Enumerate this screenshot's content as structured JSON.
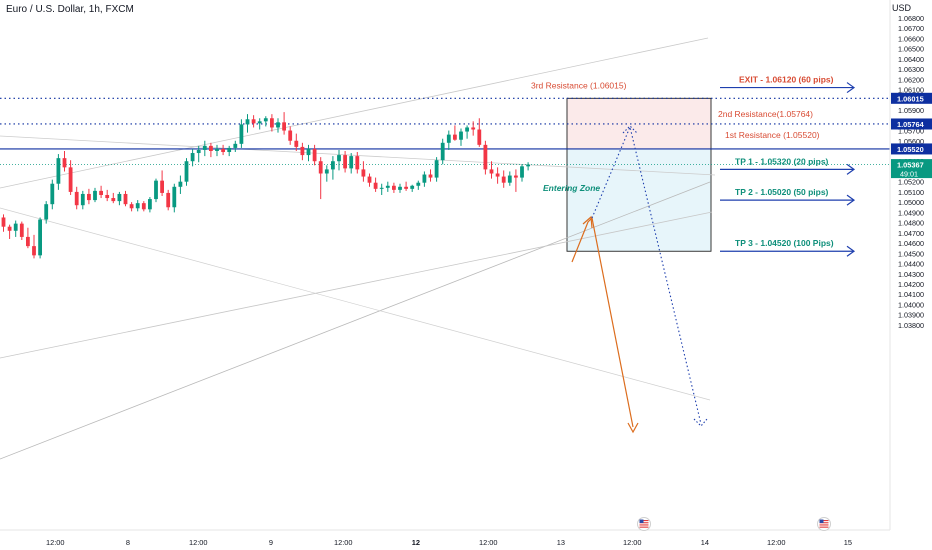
{
  "header": {
    "symbol": "Euro / U.S. Dollar, 1h, FXCM",
    "currency": "USD"
  },
  "colors": {
    "bull": "#089981",
    "bear": "#f23645",
    "res_line": "#0d2fa0",
    "exit_text": "#d84b33",
    "tp_text": "#0e8f7a",
    "arrow_blue": "#1e3fae",
    "orange": "#dc6d1e",
    "zone_red": "#f7d8d8",
    "zone_blue": "#dff2f8"
  },
  "chart_data": {
    "type": "candlestick",
    "price_axis": {
      "min": 1.038,
      "max": 1.068,
      "ticks": [
        "1.06800",
        "1.06700",
        "1.06600",
        "1.06500",
        "1.06400",
        "1.06300",
        "1.06200",
        "1.06100",
        "1.06000",
        "1.05900",
        "1.05800",
        "1.05700",
        "1.05600",
        "1.05500",
        "1.05400",
        "1.05300",
        "1.05200",
        "1.05100",
        "1.05000",
        "1.04900",
        "1.04800",
        "1.04700",
        "1.04600",
        "1.04500",
        "1.04400",
        "1.04300",
        "1.04200",
        "1.04100",
        "1.04000",
        "1.03900",
        "1.03800"
      ]
    },
    "time_axis": [
      "12:00",
      "8",
      "12:00",
      "9",
      "12:00",
      "12",
      "12:00",
      "13",
      "12:00",
      "14",
      "12:00",
      "15"
    ],
    "price_labels": [
      {
        "text": "1.06015",
        "price": 1.06015,
        "style": "blue"
      },
      {
        "text": "1.05764",
        "price": 1.05764,
        "style": "blue"
      },
      {
        "text": "1.05520",
        "price": 1.0552,
        "style": "blue"
      },
      {
        "text": "1.05367",
        "sub": "49:01",
        "price": 1.05367,
        "style": "green"
      }
    ],
    "levels": [
      {
        "name": "3rd Resistance (1.06015)",
        "price": 1.06015,
        "kind": "dotted"
      },
      {
        "name": "2nd Resistance(1.05764)",
        "price": 1.05764,
        "kind": "dotted"
      },
      {
        "name": "1st Resistance (1.05520)",
        "price": 1.0552,
        "kind": "solid"
      }
    ],
    "targets": [
      {
        "label": "EXIT - 1.06120 (60 pips)",
        "price": 1.0612,
        "color": "exit"
      },
      {
        "label": "TP 1 - 1.05320 (20 pips)",
        "price": 1.0532,
        "color": "tp"
      },
      {
        "label": "TP 2 - 1.05020 (50 pips)",
        "price": 1.0502,
        "color": "tp"
      },
      {
        "label": "TP 3 - 1.04520 (100 Pips)",
        "price": 1.0452,
        "color": "tp"
      }
    ],
    "annotation": "Entering Zone",
    "candles": [
      {
        "o": 1.0485,
        "h": 1.0488,
        "l": 1.0471,
        "c": 1.0476
      },
      {
        "o": 1.0476,
        "h": 1.0478,
        "l": 1.0464,
        "c": 1.0472
      },
      {
        "o": 1.0472,
        "h": 1.0482,
        "l": 1.0466,
        "c": 1.0479
      },
      {
        "o": 1.0479,
        "h": 1.0481,
        "l": 1.0463,
        "c": 1.0466
      },
      {
        "o": 1.0466,
        "h": 1.0475,
        "l": 1.0455,
        "c": 1.0457
      },
      {
        "o": 1.0457,
        "h": 1.0468,
        "l": 1.0445,
        "c": 1.0448
      },
      {
        "o": 1.0448,
        "h": 1.0485,
        "l": 1.0445,
        "c": 1.0483
      },
      {
        "o": 1.0483,
        "h": 1.0501,
        "l": 1.0479,
        "c": 1.0498
      },
      {
        "o": 1.0498,
        "h": 1.0522,
        "l": 1.0493,
        "c": 1.0518
      },
      {
        "o": 1.0518,
        "h": 1.0547,
        "l": 1.0512,
        "c": 1.0543
      },
      {
        "o": 1.0543,
        "h": 1.055,
        "l": 1.053,
        "c": 1.0534
      },
      {
        "o": 1.0534,
        "h": 1.0541,
        "l": 1.0507,
        "c": 1.051
      },
      {
        "o": 1.051,
        "h": 1.0515,
        "l": 1.0493,
        "c": 1.0497
      },
      {
        "o": 1.0497,
        "h": 1.0511,
        "l": 1.0493,
        "c": 1.0508
      },
      {
        "o": 1.0508,
        "h": 1.0513,
        "l": 1.0498,
        "c": 1.0502
      },
      {
        "o": 1.0502,
        "h": 1.0514,
        "l": 1.05,
        "c": 1.0511
      },
      {
        "o": 1.0511,
        "h": 1.0516,
        "l": 1.0504,
        "c": 1.0507
      },
      {
        "o": 1.0507,
        "h": 1.0512,
        "l": 1.0501,
        "c": 1.0504
      },
      {
        "o": 1.0504,
        "h": 1.0509,
        "l": 1.0499,
        "c": 1.0501
      },
      {
        "o": 1.0501,
        "h": 1.051,
        "l": 1.0497,
        "c": 1.0508
      },
      {
        "o": 1.0508,
        "h": 1.0511,
        "l": 1.0496,
        "c": 1.0498
      },
      {
        "o": 1.0498,
        "h": 1.05,
        "l": 1.0491,
        "c": 1.0494
      },
      {
        "o": 1.0494,
        "h": 1.0502,
        "l": 1.0491,
        "c": 1.0499
      },
      {
        "o": 1.0499,
        "h": 1.0501,
        "l": 1.0491,
        "c": 1.0493
      },
      {
        "o": 1.0493,
        "h": 1.0505,
        "l": 1.049,
        "c": 1.0503
      },
      {
        "o": 1.0503,
        "h": 1.0523,
        "l": 1.05,
        "c": 1.0521
      },
      {
        "o": 1.0521,
        "h": 1.0531,
        "l": 1.0506,
        "c": 1.0509
      },
      {
        "o": 1.0509,
        "h": 1.0512,
        "l": 1.0492,
        "c": 1.0495
      },
      {
        "o": 1.0495,
        "h": 1.0518,
        "l": 1.049,
        "c": 1.0515
      },
      {
        "o": 1.0515,
        "h": 1.0526,
        "l": 1.0508,
        "c": 1.052
      },
      {
        "o": 1.052,
        "h": 1.0543,
        "l": 1.0516,
        "c": 1.054
      },
      {
        "o": 1.054,
        "h": 1.0552,
        "l": 1.0535,
        "c": 1.0548
      },
      {
        "o": 1.0548,
        "h": 1.0555,
        "l": 1.0539,
        "c": 1.0551
      },
      {
        "o": 1.0551,
        "h": 1.056,
        "l": 1.0545,
        "c": 1.0555
      },
      {
        "o": 1.0555,
        "h": 1.0558,
        "l": 1.0544,
        "c": 1.055
      },
      {
        "o": 1.055,
        "h": 1.0556,
        "l": 1.0545,
        "c": 1.0552
      },
      {
        "o": 1.0552,
        "h": 1.0556,
        "l": 1.0546,
        "c": 1.0549
      },
      {
        "o": 1.0549,
        "h": 1.0555,
        "l": 1.0545,
        "c": 1.0553
      },
      {
        "o": 1.0553,
        "h": 1.056,
        "l": 1.0549,
        "c": 1.0557
      },
      {
        "o": 1.0557,
        "h": 1.0581,
        "l": 1.0553,
        "c": 1.0576
      },
      {
        "o": 1.0576,
        "h": 1.0586,
        "l": 1.0568,
        "c": 1.0581
      },
      {
        "o": 1.0581,
        "h": 1.0585,
        "l": 1.0573,
        "c": 1.0577
      },
      {
        "o": 1.0577,
        "h": 1.0582,
        "l": 1.0571,
        "c": 1.0579
      },
      {
        "o": 1.0579,
        "h": 1.0584,
        "l": 1.0574,
        "c": 1.0582
      },
      {
        "o": 1.0582,
        "h": 1.0586,
        "l": 1.0569,
        "c": 1.0573
      },
      {
        "o": 1.0573,
        "h": 1.0582,
        "l": 1.0568,
        "c": 1.0578
      },
      {
        "o": 1.0578,
        "h": 1.0588,
        "l": 1.0566,
        "c": 1.057
      },
      {
        "o": 1.057,
        "h": 1.0574,
        "l": 1.0556,
        "c": 1.056
      },
      {
        "o": 1.056,
        "h": 1.0567,
        "l": 1.055,
        "c": 1.0554
      },
      {
        "o": 1.0554,
        "h": 1.0558,
        "l": 1.0541,
        "c": 1.0546
      },
      {
        "o": 1.0546,
        "h": 1.0556,
        "l": 1.054,
        "c": 1.0552
      },
      {
        "o": 1.0552,
        "h": 1.0556,
        "l": 1.0536,
        "c": 1.054
      },
      {
        "o": 1.054,
        "h": 1.0544,
        "l": 1.0503,
        "c": 1.0528
      },
      {
        "o": 1.0528,
        "h": 1.0536,
        "l": 1.052,
        "c": 1.0532
      },
      {
        "o": 1.0532,
        "h": 1.0545,
        "l": 1.0522,
        "c": 1.054
      },
      {
        "o": 1.054,
        "h": 1.0551,
        "l": 1.0531,
        "c": 1.0546
      },
      {
        "o": 1.0546,
        "h": 1.055,
        "l": 1.0529,
        "c": 1.0533
      },
      {
        "o": 1.0533,
        "h": 1.0548,
        "l": 1.0528,
        "c": 1.0545
      },
      {
        "o": 1.0545,
        "h": 1.0549,
        "l": 1.0528,
        "c": 1.0532
      },
      {
        "o": 1.0532,
        "h": 1.054,
        "l": 1.052,
        "c": 1.0525
      },
      {
        "o": 1.0525,
        "h": 1.0528,
        "l": 1.0515,
        "c": 1.0519
      },
      {
        "o": 1.0519,
        "h": 1.0524,
        "l": 1.051,
        "c": 1.0513
      },
      {
        "o": 1.0513,
        "h": 1.0518,
        "l": 1.0507,
        "c": 1.0514
      },
      {
        "o": 1.0514,
        "h": 1.052,
        "l": 1.051,
        "c": 1.0516
      },
      {
        "o": 1.0516,
        "h": 1.0519,
        "l": 1.0509,
        "c": 1.0512
      },
      {
        "o": 1.0512,
        "h": 1.0518,
        "l": 1.0509,
        "c": 1.0515
      },
      {
        "o": 1.0515,
        "h": 1.052,
        "l": 1.0511,
        "c": 1.0513
      },
      {
        "o": 1.0513,
        "h": 1.0517,
        "l": 1.051,
        "c": 1.0516
      },
      {
        "o": 1.0516,
        "h": 1.0521,
        "l": 1.0512,
        "c": 1.0519
      },
      {
        "o": 1.0519,
        "h": 1.053,
        "l": 1.0515,
        "c": 1.0527
      },
      {
        "o": 1.0527,
        "h": 1.0532,
        "l": 1.052,
        "c": 1.0524
      },
      {
        "o": 1.0524,
        "h": 1.0544,
        "l": 1.052,
        "c": 1.0541
      },
      {
        "o": 1.0541,
        "h": 1.0562,
        "l": 1.0537,
        "c": 1.0558
      },
      {
        "o": 1.0558,
        "h": 1.057,
        "l": 1.0551,
        "c": 1.0566
      },
      {
        "o": 1.0566,
        "h": 1.0575,
        "l": 1.056,
        "c": 1.0561
      },
      {
        "o": 1.0561,
        "h": 1.0572,
        "l": 1.0555,
        "c": 1.0569
      },
      {
        "o": 1.0569,
        "h": 1.0575,
        "l": 1.0562,
        "c": 1.0573
      },
      {
        "o": 1.0573,
        "h": 1.0579,
        "l": 1.0565,
        "c": 1.0571
      },
      {
        "o": 1.0571,
        "h": 1.0582,
        "l": 1.0554,
        "c": 1.0556
      },
      {
        "o": 1.0556,
        "h": 1.056,
        "l": 1.0527,
        "c": 1.0532
      },
      {
        "o": 1.0532,
        "h": 1.054,
        "l": 1.0523,
        "c": 1.0528
      },
      {
        "o": 1.0528,
        "h": 1.0534,
        "l": 1.0518,
        "c": 1.0525
      },
      {
        "o": 1.0525,
        "h": 1.0531,
        "l": 1.0514,
        "c": 1.0519
      },
      {
        "o": 1.0519,
        "h": 1.053,
        "l": 1.0516,
        "c": 1.0526
      },
      {
        "o": 1.0526,
        "h": 1.0532,
        "l": 1.051,
        "c": 1.0524
      },
      {
        "o": 1.0524,
        "h": 1.0537,
        "l": 1.052,
        "c": 1.0535
      },
      {
        "o": 1.0535,
        "h": 1.0539,
        "l": 1.0531,
        "c": 1.05367
      }
    ]
  }
}
